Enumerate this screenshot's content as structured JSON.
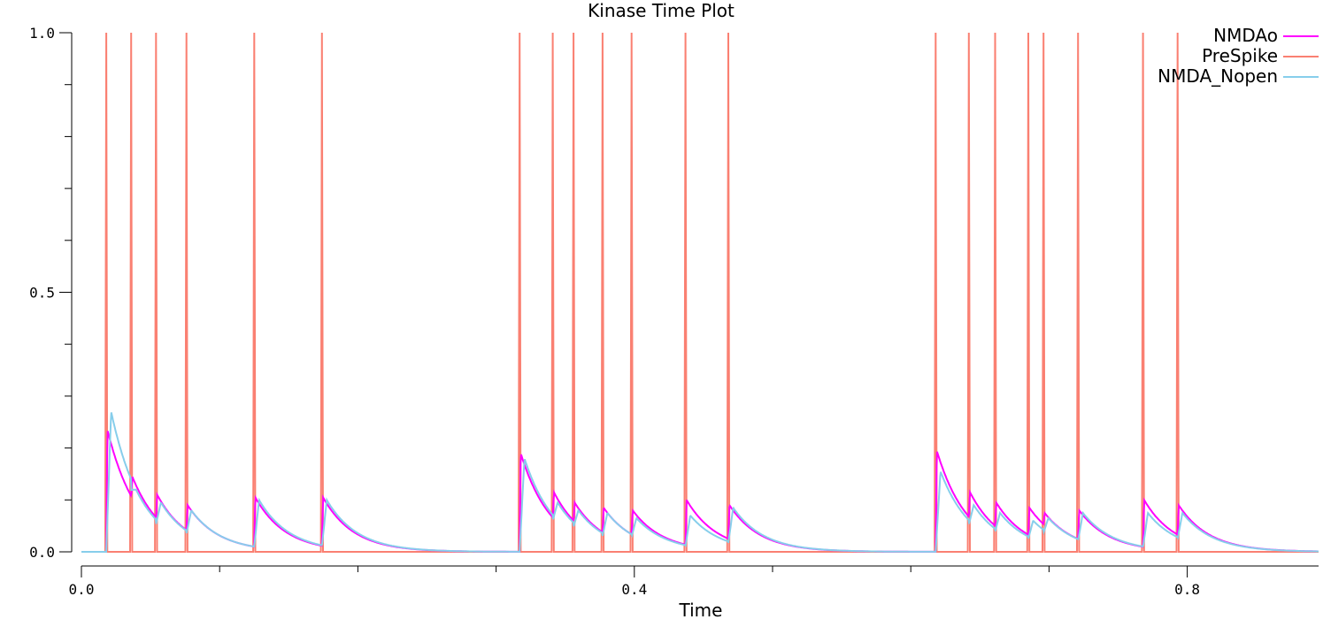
{
  "chart_data": {
    "type": "line",
    "title": "Kinase Time Plot",
    "xlabel": "Time",
    "ylabel": "",
    "xlim": [
      0.0,
      0.895
    ],
    "ylim": [
      0.0,
      1.0
    ],
    "x_ticks": [
      0.0,
      0.1,
      0.2,
      0.3,
      0.4,
      0.5,
      0.6,
      0.7,
      0.8
    ],
    "x_tick_labels": [
      "0.0",
      "",
      "",
      "",
      "0.4",
      "",
      "",
      "",
      "0.8"
    ],
    "y_ticks": [
      0.0,
      0.1,
      0.2,
      0.3,
      0.4,
      0.5,
      0.6,
      0.7,
      0.8,
      0.9,
      1.0
    ],
    "y_tick_labels": [
      "0.0",
      "",
      "",
      "",
      "",
      "0.5",
      "",
      "",
      "",
      "",
      "1.0"
    ],
    "legend_position": "top-right",
    "spike_times": [
      0.018,
      0.036,
      0.054,
      0.076,
      0.125,
      0.174,
      0.317,
      0.341,
      0.356,
      0.377,
      0.398,
      0.437,
      0.468,
      0.618,
      0.642,
      0.661,
      0.685,
      0.696,
      0.721,
      0.768,
      0.793
    ],
    "series": [
      {
        "name": "NMDAo",
        "color": "#ff00ff",
        "peaks": [
          0.235,
          0.145,
          0.11,
          0.09,
          0.105,
          0.105,
          0.19,
          0.115,
          0.095,
          0.085,
          0.08,
          0.1,
          0.09,
          0.195,
          0.115,
          0.095,
          0.085,
          0.075,
          0.08,
          0.1,
          0.09
        ]
      },
      {
        "name": "PreSpike",
        "color": "#fa8072",
        "spike_value": 1.0,
        "baseline": 0.0
      },
      {
        "name": "NMDA_Nopen",
        "color": "#87ceeb",
        "peaks": [
          0.27,
          0.12,
          0.095,
          0.08,
          0.1,
          0.1,
          0.18,
          0.095,
          0.08,
          0.075,
          0.065,
          0.07,
          0.085,
          0.155,
          0.09,
          0.075,
          0.06,
          0.065,
          0.075,
          0.075,
          0.075
        ]
      }
    ]
  }
}
